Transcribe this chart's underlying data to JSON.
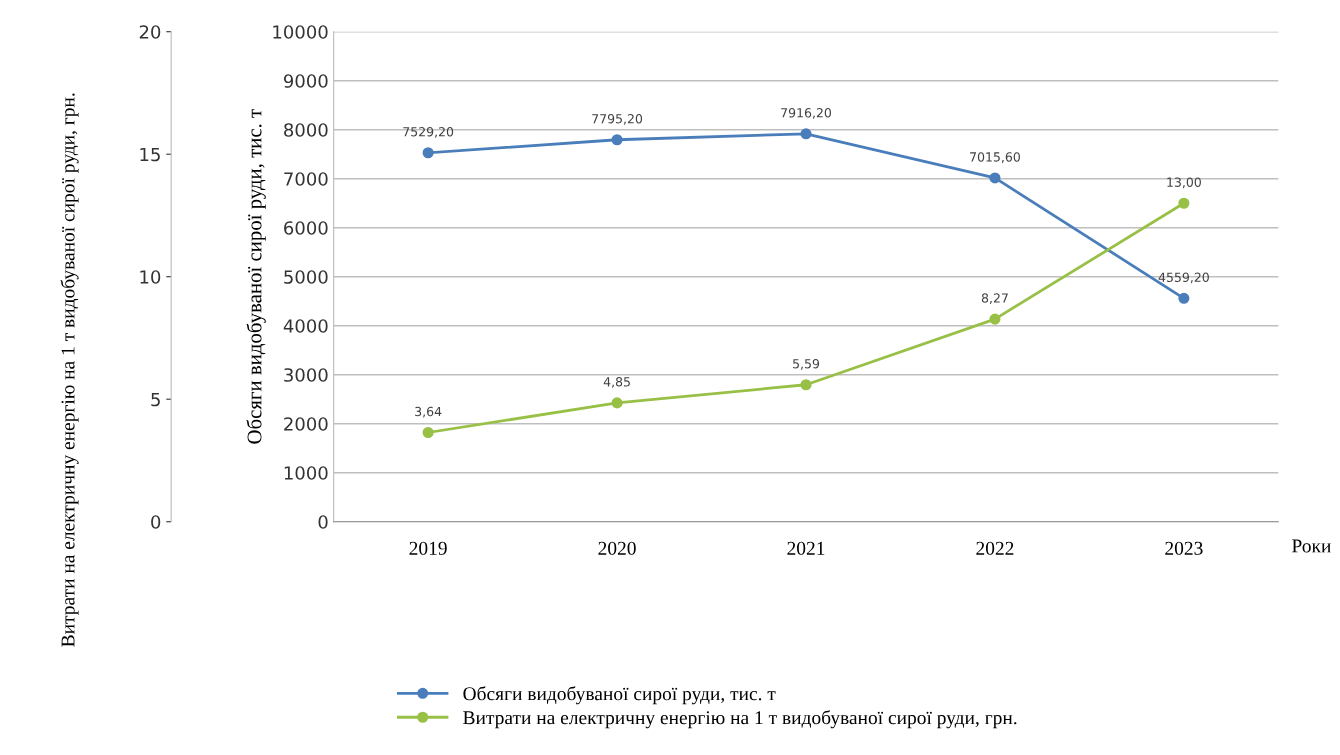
{
  "chart_data": {
    "type": "line",
    "categories": [
      "2019",
      "2020",
      "2021",
      "2022",
      "2023"
    ],
    "xlabel": "Роки",
    "ylabel": "Обсяги видобуваної сирої руди, тис. т",
    "y2label": "Витрати на електричну енергію на 1 т видобуваної сирої руди, грн.",
    "series": [
      {
        "name": "Обсяги видобуваної сирої руди, тис. т",
        "color": "#4a7ebb",
        "values": [
          7529.2,
          7795.2,
          7916.2,
          7015.6,
          4559.2
        ],
        "value_labels": [
          "7529,20",
          "7795,20",
          "7916,20",
          "7015,60",
          "4559,20"
        ]
      },
      {
        "name": "Витрати на електричну енергію на 1 т видобуваної сирої руди, грн.",
        "color": "#98c046",
        "axis": "y2",
        "values": [
          3.64,
          4.85,
          5.59,
          8.27,
          13.0
        ],
        "value_labels": [
          "3,64",
          "4,85",
          "5,59",
          "8,27",
          "13,00"
        ]
      }
    ],
    "ylim": [
      0,
      10000
    ],
    "yticks": [
      0,
      1000,
      2000,
      3000,
      4000,
      5000,
      6000,
      7000,
      8000,
      9000,
      10000
    ],
    "y2lim": [
      0,
      20
    ],
    "y2ticks": [
      0,
      5,
      10,
      15,
      20
    ],
    "grid": "y",
    "legend": "bottom",
    "marker": "circle",
    "line_style": "solid"
  }
}
